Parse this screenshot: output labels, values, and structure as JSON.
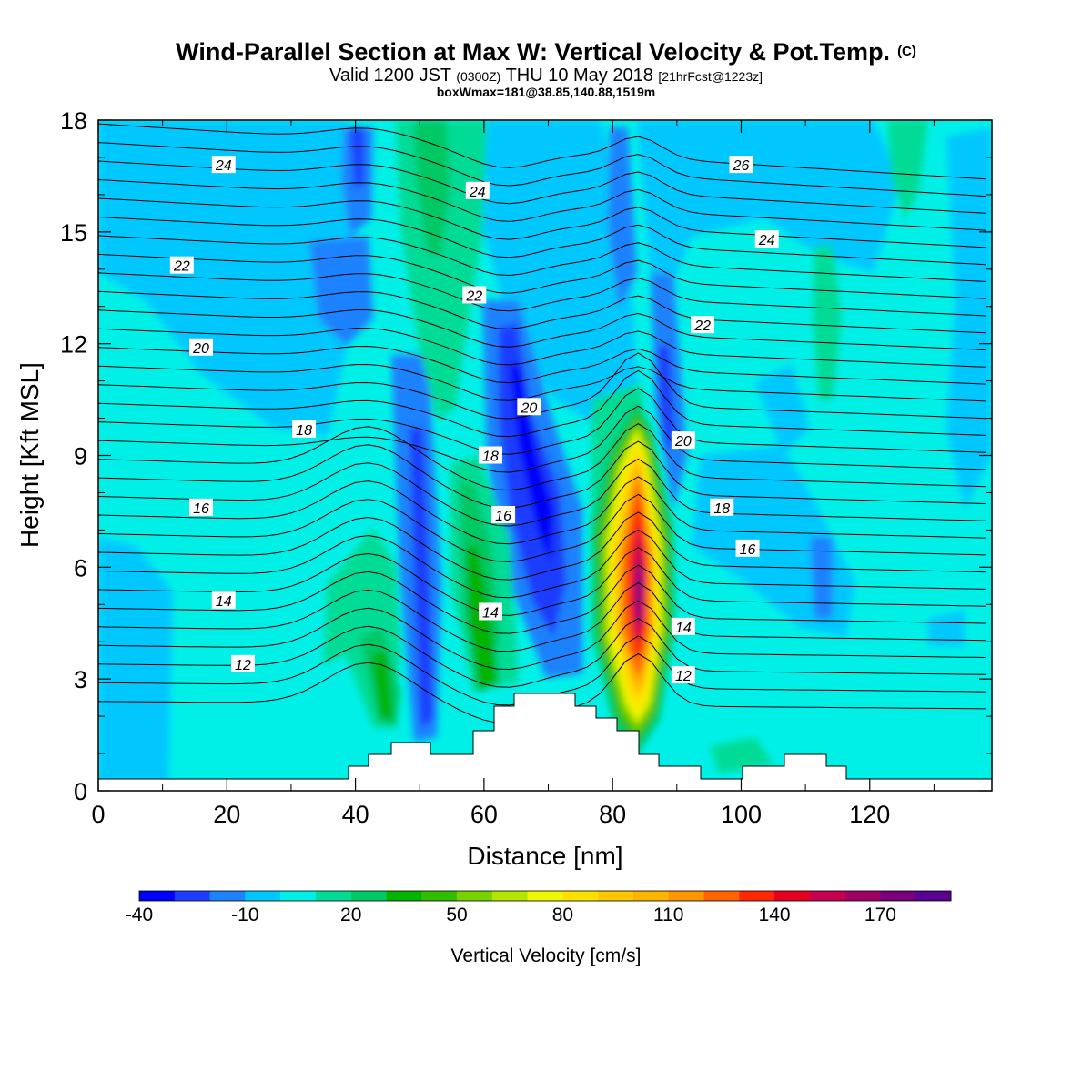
{
  "title": {
    "main": "Wind-Parallel Section at Max W: Vertical Velocity & Pot.Temp.",
    "copyright": "(C)",
    "valid_prefix": "Valid 1200 JST",
    "valid_utc": "(0300Z)",
    "valid_date": "THU 10 May 2018",
    "forecast": "[21hrFcst@1223z]",
    "boxwmax": "boxWmax=181@38.85,140.88,1519m"
  },
  "chart_data": {
    "type": "heatmap",
    "xlabel": "Distance [nm]",
    "ylabel": "Height [Kft MSL]",
    "xlim": [
      0,
      139
    ],
    "ylim": [
      0,
      18
    ],
    "xticks": [
      0,
      20,
      40,
      60,
      80,
      100,
      120
    ],
    "yticks": [
      0,
      3,
      6,
      9,
      12,
      15,
      18
    ],
    "colorbar": {
      "label": "Vertical Velocity [cm/s]",
      "tick_labels": [
        "-40",
        "-10",
        "20",
        "50",
        "80",
        "110",
        "140",
        "170"
      ],
      "levels": [
        -40,
        -30,
        -20,
        -10,
        0,
        10,
        20,
        30,
        40,
        50,
        60,
        70,
        80,
        90,
        100,
        110,
        120,
        130,
        140,
        150,
        160,
        170,
        180
      ],
      "colors": [
        "#0000ff",
        "#1e3cff",
        "#1f82ff",
        "#00c8ff",
        "#00f0e8",
        "#00dc96",
        "#00c864",
        "#00b400",
        "#32be00",
        "#78d200",
        "#b4e600",
        "#f0f500",
        "#ffe100",
        "#ffc800",
        "#ffb400",
        "#ff9600",
        "#ff6400",
        "#ff2800",
        "#e6001e",
        "#c80050",
        "#a00064",
        "#78007a",
        "#5a0090"
      ]
    },
    "peak_vertical_velocity": 181,
    "theta_contour_labels": [
      {
        "text": "24",
        "x": 19.5,
        "y": 16.8
      },
      {
        "text": "24",
        "x": 59,
        "y": 16.1
      },
      {
        "text": "26",
        "x": 100,
        "y": 16.8
      },
      {
        "text": "24",
        "x": 104,
        "y": 14.8
      },
      {
        "text": "22",
        "x": 13,
        "y": 14.1
      },
      {
        "text": "22",
        "x": 58.5,
        "y": 13.3
      },
      {
        "text": "22",
        "x": 94,
        "y": 12.5
      },
      {
        "text": "20",
        "x": 16,
        "y": 11.9
      },
      {
        "text": "20",
        "x": 67,
        "y": 10.3
      },
      {
        "text": "20",
        "x": 91,
        "y": 9.4
      },
      {
        "text": "18",
        "x": 32,
        "y": 9.7
      },
      {
        "text": "18",
        "x": 61,
        "y": 9.0
      },
      {
        "text": "18",
        "x": 97,
        "y": 7.6
      },
      {
        "text": "16",
        "x": 16,
        "y": 7.6
      },
      {
        "text": "16",
        "x": 63,
        "y": 7.4
      },
      {
        "text": "16",
        "x": 101,
        "y": 6.5
      },
      {
        "text": "14",
        "x": 19.5,
        "y": 5.1
      },
      {
        "text": "14",
        "x": 61,
        "y": 4.8
      },
      {
        "text": "14",
        "x": 91,
        "y": 4.4
      },
      {
        "text": "12",
        "x": 22.5,
        "y": 3.4
      },
      {
        "text": "12",
        "x": 91,
        "y": 3.1
      }
    ]
  }
}
